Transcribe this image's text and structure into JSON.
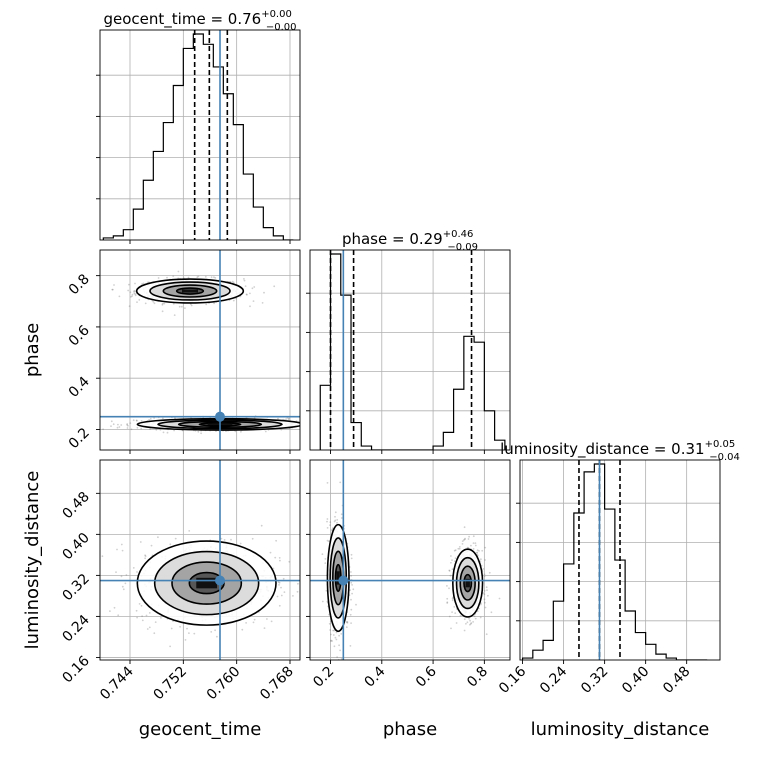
{
  "chart_data": {
    "type": "corner",
    "parameters": [
      "geocent_time",
      "phase",
      "luminosity_distance"
    ],
    "axis_labels": [
      "geocent_time",
      "phase",
      "luminosity_distance"
    ],
    "truth_color": "#4682b4",
    "ranges": {
      "geocent_time": [
        0.7395,
        0.7695
      ],
      "phase": [
        0.12,
        0.9
      ],
      "luminosity_distance": [
        0.155,
        0.545
      ]
    },
    "ticks": {
      "geocent_time": [
        0.744,
        0.752,
        0.76,
        0.768
      ],
      "phase": [
        0.2,
        0.4,
        0.6,
        0.8
      ],
      "luminosity_distance": [
        0.16,
        0.24,
        0.32,
        0.4,
        0.48
      ]
    },
    "tick_labels": {
      "geocent_time": [
        "0.744",
        "0.752",
        "0.760",
        "0.768"
      ],
      "phase": [
        "0.2",
        "0.4",
        "0.6",
        "0.8"
      ],
      "luminosity_distance": [
        "0.16",
        "0.24",
        "0.32",
        "0.40",
        "0.48"
      ]
    },
    "truths": {
      "geocent_time": 0.7575,
      "phase": 0.25,
      "luminosity_distance": 0.31
    },
    "titles": [
      {
        "param": "geocent_time",
        "text": "geocent_time = 0.76",
        "sup": "+0.00",
        "sub": "−0.00"
      },
      {
        "param": "phase",
        "text": "phase = 0.29",
        "sup": "+0.46",
        "sub": "−0.09"
      },
      {
        "param": "luminosity_distance",
        "text": "luminosity_distance = 0.31",
        "sup": "+0.05",
        "sub": "−0.04"
      }
    ],
    "quantiles": {
      "geocent_time": [
        0.7537,
        0.7559,
        0.7586
      ],
      "phase": [
        0.2,
        0.29,
        0.75
      ],
      "luminosity_distance": [
        0.27,
        0.31,
        0.35
      ]
    },
    "histograms": {
      "geocent_time": {
        "edges": [
          0.74,
          0.7415,
          0.743,
          0.7445,
          0.746,
          0.7475,
          0.749,
          0.7505,
          0.752,
          0.7535,
          0.755,
          0.7565,
          0.758,
          0.7595,
          0.761,
          0.7625,
          0.764,
          0.7655,
          0.767,
          0.7685
        ],
        "counts": [
          1,
          2,
          5,
          15,
          29,
          43,
          57,
          75,
          93,
          100,
          95,
          84,
          71,
          56,
          32,
          16,
          6,
          2,
          0
        ]
      },
      "phase": {
        "edges": [
          0.16,
          0.2,
          0.24,
          0.28,
          0.32,
          0.36,
          0.4,
          0.44,
          0.48,
          0.52,
          0.56,
          0.6,
          0.64,
          0.68,
          0.72,
          0.76,
          0.8,
          0.84,
          0.88
        ],
        "counts": [
          33,
          100,
          79,
          14,
          2,
          0,
          0,
          0,
          0,
          0,
          0,
          2,
          9,
          31,
          58,
          55,
          20,
          5
        ]
      },
      "luminosity_distance": {
        "edges": [
          0.16,
          0.18,
          0.2,
          0.22,
          0.24,
          0.26,
          0.28,
          0.3,
          0.32,
          0.34,
          0.36,
          0.38,
          0.4,
          0.42,
          0.44,
          0.46,
          0.48,
          0.5,
          0.52
        ],
        "counts": [
          1,
          5,
          10,
          30,
          49,
          75,
          96,
          100,
          77,
          51,
          25,
          14,
          8,
          3,
          1,
          0,
          0,
          0
        ]
      }
    },
    "contours_2d": [
      {
        "x": "geocent_time",
        "y": "phase",
        "modes": [
          {
            "cx": 0.753,
            "cy": 0.74,
            "sx": 0.004,
            "sy": 0.0233
          },
          {
            "cx": 0.7575,
            "cy": 0.22,
            "sx": 0.0062,
            "sy": 0.0111
          }
        ]
      },
      {
        "x": "geocent_time",
        "y": "luminosity_distance",
        "modes": [
          {
            "cx": 0.7555,
            "cy": 0.305,
            "sx": 0.0052,
            "sy": 0.041
          }
        ]
      },
      {
        "x": "phase",
        "y": "luminosity_distance",
        "modes": [
          {
            "cx": 0.23,
            "cy": 0.315,
            "sx": 0.021,
            "sy": 0.052
          },
          {
            "cx": 0.735,
            "cy": 0.305,
            "sx": 0.029,
            "sy": 0.033
          }
        ]
      }
    ],
    "contour_levels_sigma": [
      0.5,
      1.0,
      1.5,
      2.0
    ],
    "grid": true,
    "legend": "none"
  }
}
